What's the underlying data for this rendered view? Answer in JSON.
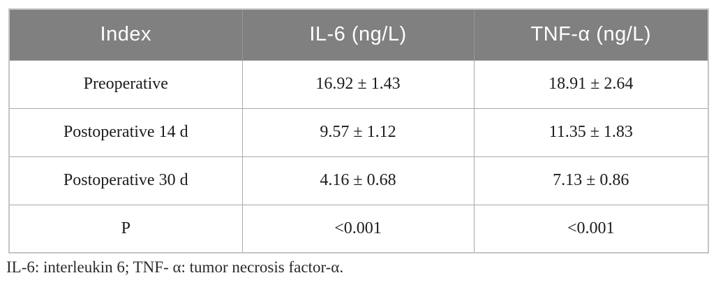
{
  "table": {
    "columns": [
      "Index",
      "IL-6 (ng/L)",
      "TNF-α (ng/L)"
    ],
    "rows": [
      [
        "Preoperative",
        "16.92 ± 1.43",
        "18.91 ± 2.64"
      ],
      [
        "Postoperative 14 d",
        "9.57 ± 1.12",
        "11.35 ± 1.83"
      ],
      [
        "Postoperative 30 d",
        "4.16 ± 0.68",
        "7.13 ± 0.86"
      ],
      [
        "P",
        "<0.001",
        "<0.001"
      ]
    ]
  },
  "footnote": "IL-6: interleukin 6; TNF- α: tumor necrosis factor-α.",
  "colors": {
    "header_bg": "#808080",
    "header_text": "#ffffff",
    "outer_border": "#c4c4c4",
    "inner_border": "#a9a9a9",
    "body_text": "#1c1c1c"
  },
  "chart_data": {
    "type": "table",
    "title": "",
    "columns": [
      "Index",
      "IL-6 (ng/L)",
      "TNF-α (ng/L)"
    ],
    "rows": [
      [
        "Preoperative",
        "16.92 ± 1.43",
        "18.91 ± 2.64"
      ],
      [
        "Postoperative 14 d",
        "9.57 ± 1.12",
        "11.35 ± 1.83"
      ],
      [
        "Postoperative 30 d",
        "4.16 ± 0.68",
        "7.13 ± 0.86"
      ],
      [
        "P",
        "<0.001",
        "<0.001"
      ]
    ]
  }
}
